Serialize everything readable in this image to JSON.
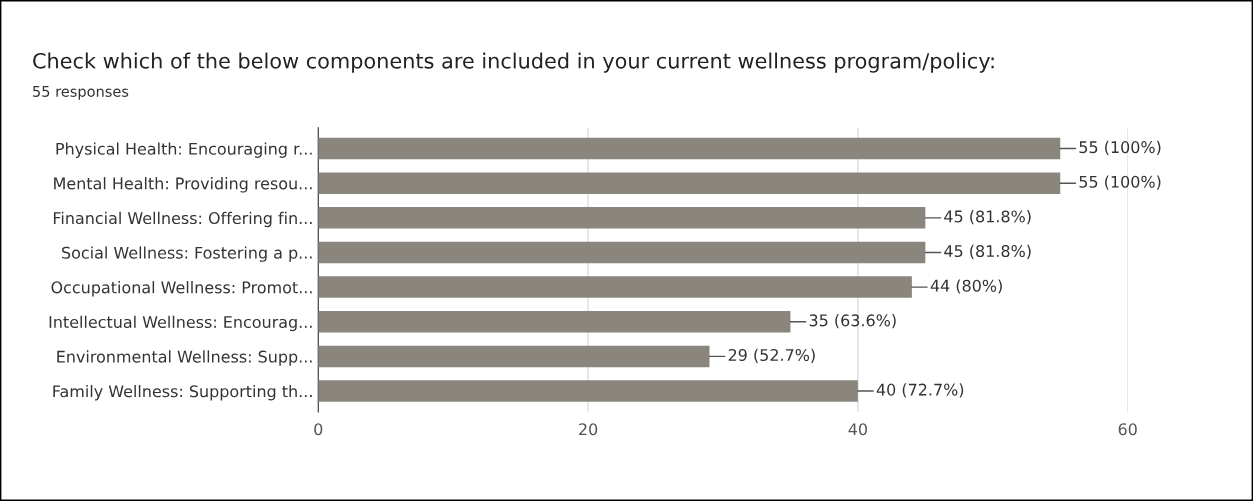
{
  "chart_data": {
    "type": "bar",
    "orientation": "horizontal",
    "title": "Check which of the below components are included in your current wellness program/policy:",
    "subtitle": "55 responses",
    "categories": [
      "Physical Health: Encouraging r...",
      "Mental Health: Providing resou...",
      "Financial Wellness: Offering fin...",
      "Social Wellness: Fostering a p...",
      "Occupational Wellness: Promot...",
      "Intellectual Wellness: Encourag...",
      "Environmental Wellness: Supp...",
      "Family Wellness: Supporting th..."
    ],
    "values": [
      55,
      55,
      45,
      45,
      44,
      35,
      29,
      40
    ],
    "value_labels": [
      "55 (100%)",
      "55 (100%)",
      "45 (81.8%)",
      "45 (81.8%)",
      "44 (80%)",
      "35 (63.6%)",
      "29 (52.7%)",
      "40 (72.7%)"
    ],
    "color": "#8a857d",
    "xlim": [
      0,
      60
    ],
    "xticks": [
      0,
      20,
      40,
      60
    ],
    "grid": "x",
    "legend": false
  }
}
